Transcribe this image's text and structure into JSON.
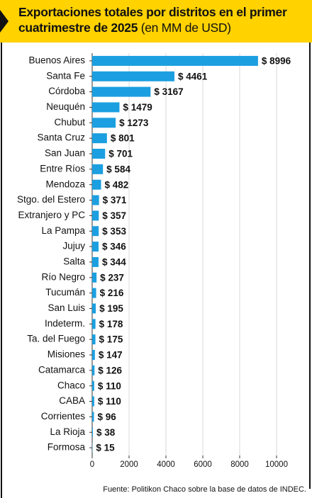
{
  "chart_data": {
    "type": "bar",
    "orientation": "horizontal",
    "title": "Exportaciones totales por distritos en el primer cuatrimestre de 2025",
    "title_unit": "(en MM de USD)",
    "categories": [
      "Buenos Aires",
      "Santa Fe",
      "Córdoba",
      "Neuquén",
      "Chubut",
      "Santa Cruz",
      "San Juan",
      "Entre Ríos",
      "Mendoza",
      "Stgo. del Estero",
      "Extranjero y PC",
      "La Pampa",
      "Jujuy",
      "Salta",
      "Río Negro",
      "Tucumán",
      "San Luis",
      "Indeterm.",
      "Ta. del Fuego",
      "Misiones",
      "Catamarca",
      "Chaco",
      "CABA",
      "Corrientes",
      "La Rioja",
      "Formosa"
    ],
    "values": [
      8996,
      4461,
      3167,
      1479,
      1273,
      801,
      701,
      584,
      482,
      371,
      357,
      353,
      346,
      344,
      237,
      216,
      195,
      178,
      175,
      147,
      126,
      110,
      110,
      96,
      38,
      15
    ],
    "value_labels": [
      "$ 8996",
      "$ 4461",
      "$ 3167",
      "$ 1479",
      "$ 1273",
      "$ 801",
      "$ 701",
      "$ 584",
      "$ 482",
      "$ 371",
      "$ 357",
      "$ 353",
      "$ 346",
      "$ 344",
      "$ 237",
      "$ 216",
      "$ 195",
      "$ 178",
      "$ 175",
      "$ 147",
      "$ 126",
      "$ 110",
      "$ 110",
      "$ 96",
      "$ 38",
      "$ 15"
    ],
    "color": "#1b9fe0",
    "xlim": [
      0,
      10000
    ],
    "xticks": [
      0,
      2000,
      4000,
      6000,
      8000,
      10000
    ],
    "grid": true,
    "source": "Fuente: Politikon Chaco sobre la base de datos de INDEC."
  }
}
